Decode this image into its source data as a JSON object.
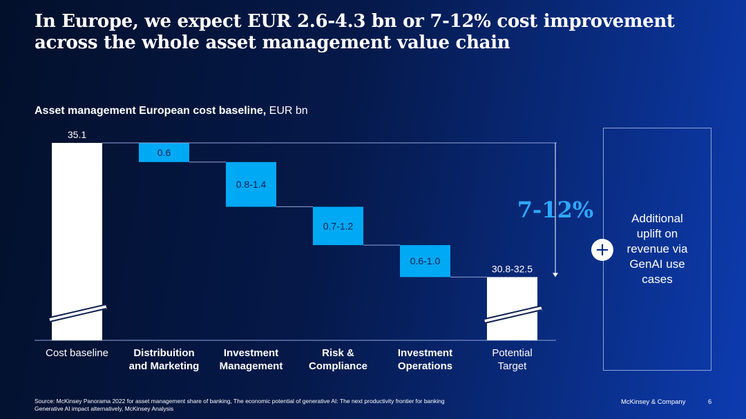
{
  "title": "In Europe, we expect EUR 2.6-4.3 bn or 7-12% cost improvement across the whole asset management value chain",
  "subtitle": {
    "bold": "Asset management European cost baseline,",
    "unit": "EUR bn"
  },
  "chart_data": {
    "type": "bar",
    "subtype": "waterfall",
    "unit": "EUR bn",
    "baseline": {
      "category": "Cost baseline",
      "value": 35.1,
      "label": "35.1"
    },
    "steps": [
      {
        "category": "Distribuition and Marketing",
        "low": 0.6,
        "high": 0.6,
        "label": "0.6"
      },
      {
        "category": "Investment Management",
        "low": 0.8,
        "high": 1.4,
        "label": "0.8-1.4"
      },
      {
        "category": "Risk & Compliance",
        "low": 0.7,
        "high": 1.2,
        "label": "0.7-1.2"
      },
      {
        "category": "Investment Operations",
        "low": 0.6,
        "high": 1.0,
        "label": "0.6-1.0"
      }
    ],
    "target": {
      "category": "Potential Target",
      "low": 30.8,
      "high": 32.5,
      "label": "30.8-32.5"
    },
    "annotation": "7-12%",
    "axis_break": true,
    "colors": {
      "total_bar": "#ffffff",
      "step_bar": "#00a9f4",
      "annotation": "#2ea8ff"
    }
  },
  "categories": [
    {
      "line1": "Cost baseline",
      "line2": "",
      "bold": false
    },
    {
      "line1": "Distribuition",
      "line2": "and Marketing",
      "bold": true
    },
    {
      "line1": "Investment",
      "line2": "Management",
      "bold": true
    },
    {
      "line1": "Risk &",
      "line2": "Compliance",
      "bold": true
    },
    {
      "line1": "Investment",
      "line2": "Operations",
      "bold": true
    },
    {
      "line1": "Potential",
      "line2": "Target",
      "bold": false
    }
  ],
  "side_box": {
    "plus": "+",
    "text": "Additional uplift on revenue via GenAI use cases"
  },
  "footer": {
    "source": "Source: McKinsey Panorama 2022 for asset management share of banking, The economic potential of generative AI: The next productivity frontier for banking",
    "source2": "Generative AI impact alternatively, McKinsey Analysis",
    "brand": "McKinsey & Company",
    "page": "6"
  }
}
